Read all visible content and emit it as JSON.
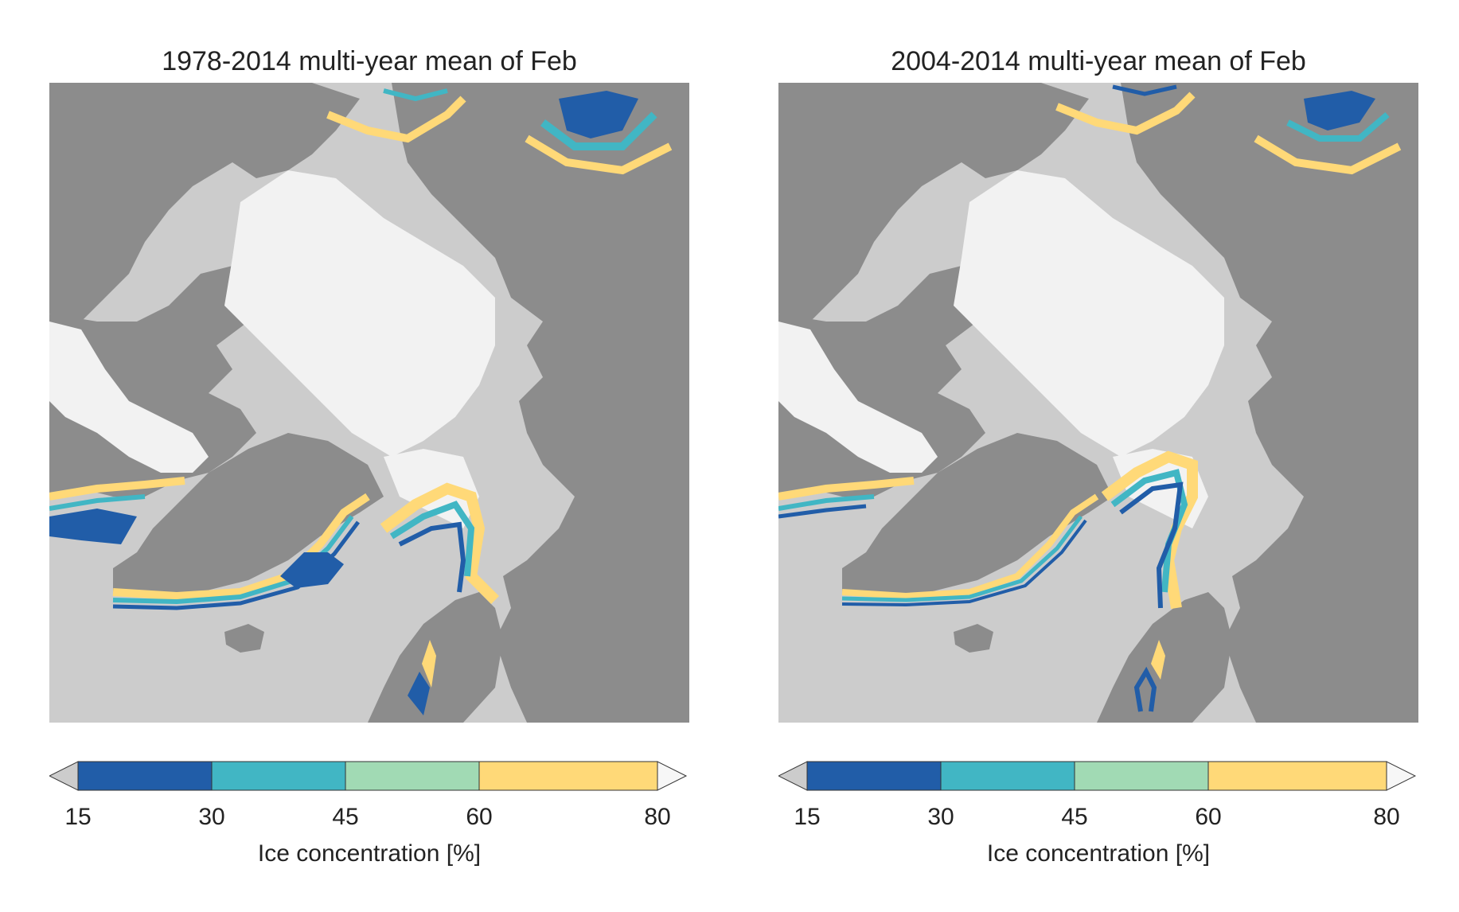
{
  "panels": [
    {
      "title": "1978-2014 multi-year mean of Feb"
    },
    {
      "title": "2004-2014 multi-year mean of Feb"
    }
  ],
  "colorbar": {
    "label": "Ice concentration [%]",
    "ticks": [
      "15",
      "30",
      "45",
      "60",
      "80"
    ],
    "bins": [
      {
        "from": 15,
        "to": 30,
        "color": "#215da8"
      },
      {
        "from": 30,
        "to": 45,
        "color": "#41b6c4"
      },
      {
        "from": 45,
        "to": 60,
        "color": "#a1dab4"
      },
      {
        "from": 60,
        "to": 80,
        "color": "#ffd978"
      }
    ],
    "under_color": "#cccccc",
    "over_color": "#f2f2f2",
    "extend": "both"
  },
  "map_colors": {
    "ocean": "#cccccc",
    "land": "#8c8c8c",
    "ice": "#f2f2f2"
  }
}
